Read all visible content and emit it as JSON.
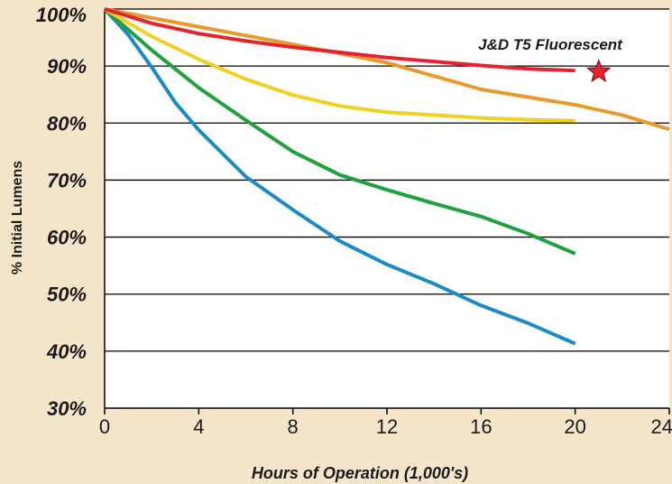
{
  "chart_data": {
    "type": "line",
    "xlabel": "Hours of Operation (1,000's)",
    "ylabel": "% Initial Lumens",
    "xlim": [
      0,
      24
    ],
    "ylim": [
      30,
      100
    ],
    "x_ticks": [
      "0",
      "4",
      "8",
      "12",
      "16",
      "20",
      "24"
    ],
    "y_ticks": [
      "100%",
      "90%",
      "80%",
      "70%",
      "60%",
      "50%",
      "40%",
      "30%"
    ],
    "grid": "horizontal",
    "background_color": "#f5e6cb",
    "plot_color": "#ffffff",
    "annotation": {
      "text": "J&D T5 Fluorescent",
      "marker": "star-icon",
      "marker_color": "#e8212e",
      "marker_x": 21,
      "marker_y": 89
    },
    "series": [
      {
        "color": "#e8212e",
        "x": [
          0,
          2,
          4,
          6,
          8,
          10,
          12,
          14,
          16,
          18,
          20
        ],
        "y": [
          100,
          97.5,
          95.7,
          94.4,
          93.3,
          92.4,
          91.5,
          90.8,
          90.1,
          89.5,
          89.2
        ]
      },
      {
        "color": "#e89a2c",
        "x": [
          0,
          4,
          8,
          12,
          16,
          20,
          22,
          24
        ],
        "y": [
          100,
          96.9,
          93.8,
          90.6,
          85.9,
          83.2,
          81.4,
          78.9
        ]
      },
      {
        "color": "#f2d020",
        "x": [
          0,
          2,
          4,
          6,
          8,
          10,
          12,
          14,
          16,
          18,
          20
        ],
        "y": [
          100,
          95.2,
          91.2,
          87.7,
          84.9,
          83.0,
          81.9,
          81.4,
          80.9,
          80.6,
          80.4
        ]
      },
      {
        "color": "#1fa23c",
        "x": [
          0,
          2,
          4,
          6,
          8,
          10,
          12,
          14,
          16,
          18,
          20
        ],
        "y": [
          100,
          92.8,
          86.2,
          80.5,
          75.0,
          70.9,
          68.3,
          65.9,
          63.6,
          60.6,
          57.1
        ]
      },
      {
        "color": "#1b8bc6",
        "x": [
          0,
          1,
          2,
          3,
          4,
          6,
          8,
          10,
          12,
          14,
          16,
          18,
          20
        ],
        "y": [
          100,
          95.5,
          89.8,
          83.6,
          78.8,
          70.6,
          64.8,
          59.3,
          55.2,
          51.8,
          48.0,
          44.9,
          41.3
        ]
      }
    ]
  }
}
